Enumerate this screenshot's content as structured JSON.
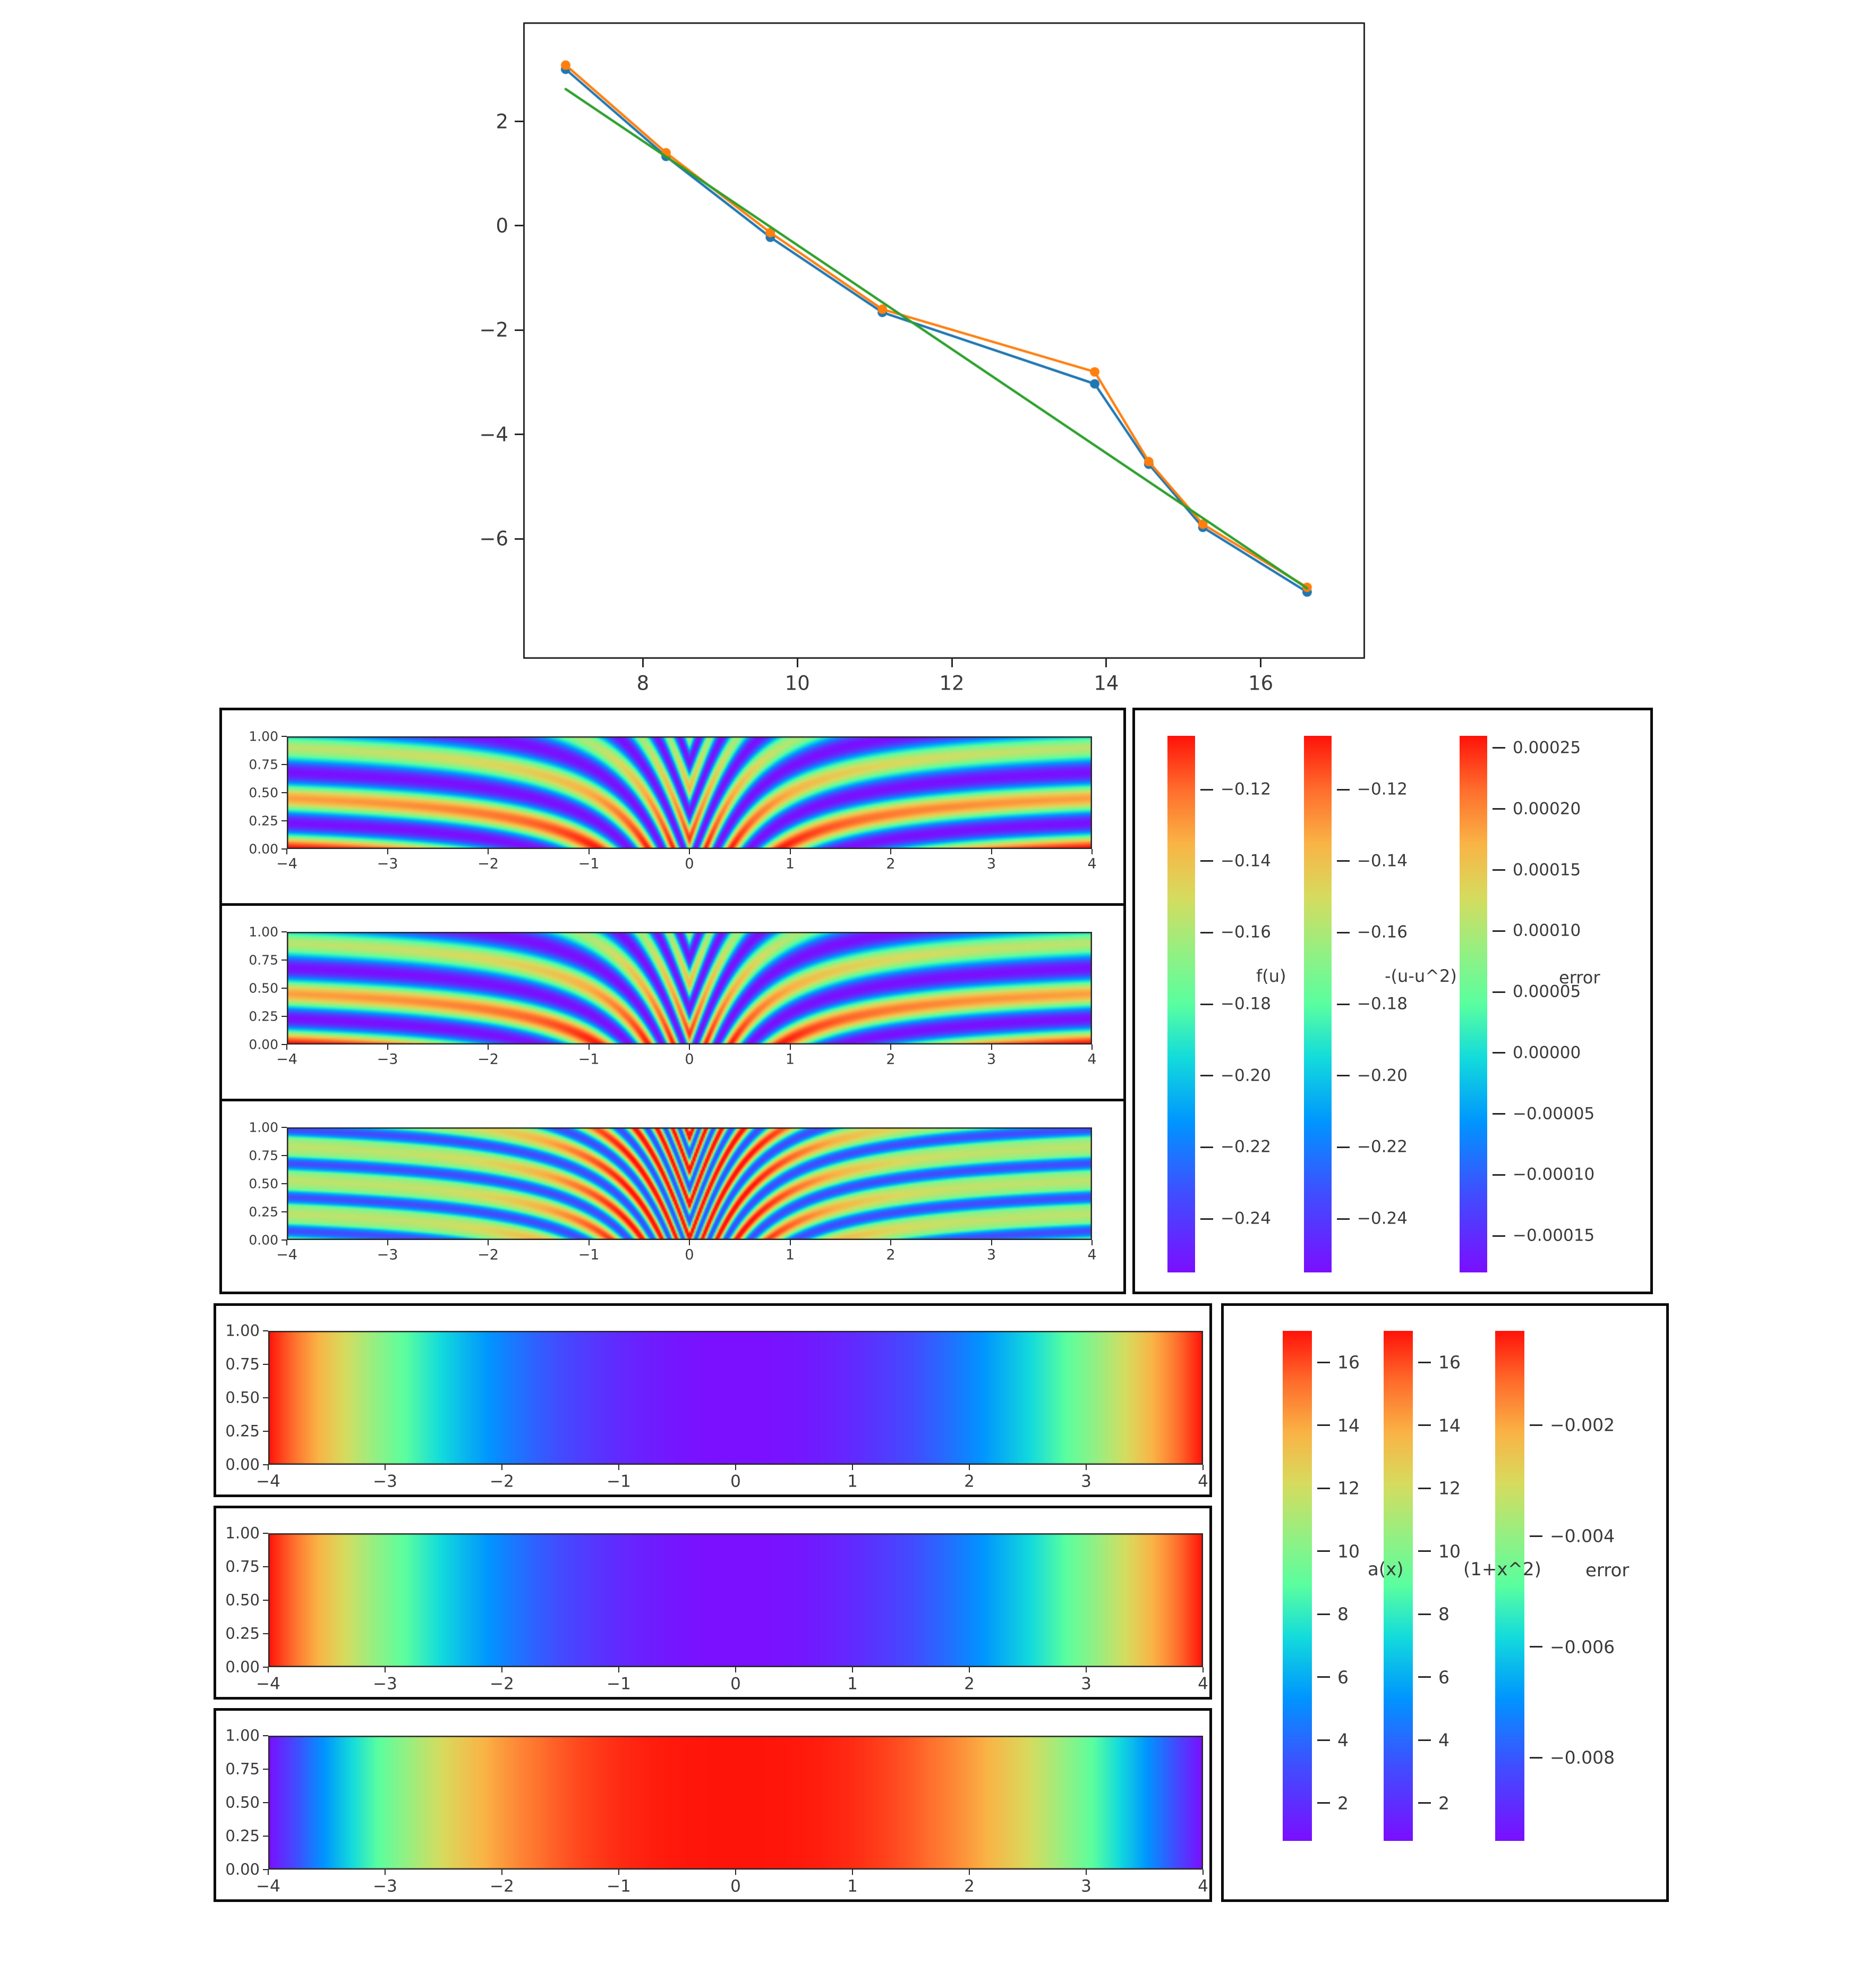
{
  "colors": {
    "background": "#ffffff",
    "axis_frame": "#262626",
    "tick_text": "#3a3a3a",
    "box_border": "#0a0a0a",
    "series_blue": "#1f77b4",
    "series_orange": "#ff7f0e",
    "series_green": "#2ca02c"
  },
  "strip_axes": {
    "xticks": [
      {
        "v": -4,
        "label": "−4"
      },
      {
        "v": -3,
        "label": "−3"
      },
      {
        "v": -2,
        "label": "−2"
      },
      {
        "v": -1,
        "label": "−1"
      },
      {
        "v": 0,
        "label": "0"
      },
      {
        "v": 1,
        "label": "1"
      },
      {
        "v": 2,
        "label": "2"
      },
      {
        "v": 3,
        "label": "3"
      },
      {
        "v": 4,
        "label": "4"
      }
    ],
    "yticks": [
      {
        "v": 1.0,
        "label": "1.00"
      },
      {
        "v": 0.75,
        "label": "0.75"
      },
      {
        "v": 0.5,
        "label": "0.50"
      },
      {
        "v": 0.25,
        "label": "0.25"
      },
      {
        "v": 0.0,
        "label": "0.00"
      }
    ]
  },
  "chart_data": [
    {
      "id": "line-chart",
      "type": "line",
      "title": "",
      "xlabel": "",
      "ylabel": "",
      "xlim": [
        6.45,
        17.35
      ],
      "ylim": [
        -8.3,
        3.9
      ],
      "grid": false,
      "legend": "none",
      "xticks": [
        {
          "v": 8,
          "label": "8"
        },
        {
          "v": 10,
          "label": "10"
        },
        {
          "v": 12,
          "label": "12"
        },
        {
          "v": 14,
          "label": "14"
        },
        {
          "v": 16,
          "label": "16"
        }
      ],
      "yticks": [
        {
          "v": 2,
          "label": "2"
        },
        {
          "v": 0,
          "label": "0"
        },
        {
          "v": -2,
          "label": "−2"
        },
        {
          "v": -4,
          "label": "−4"
        },
        {
          "v": -6,
          "label": "−6"
        }
      ],
      "series": [
        {
          "name": "computed-curve-blue",
          "color": "#1f77b4",
          "marker": true,
          "x": [
            7.0,
            8.3,
            9.65,
            11.1,
            13.85,
            14.55,
            15.25,
            16.6
          ],
          "y": [
            3.0,
            1.33,
            -0.22,
            -1.66,
            -3.03,
            -4.57,
            -5.78,
            -7.02
          ]
        },
        {
          "name": "reference-curve-orange",
          "color": "#ff7f0e",
          "marker": true,
          "x": [
            7.0,
            8.3,
            9.65,
            11.1,
            13.85,
            14.55,
            15.25,
            16.6
          ],
          "y": [
            3.08,
            1.4,
            -0.13,
            -1.6,
            -2.8,
            -4.52,
            -5.72,
            -6.93
          ]
        },
        {
          "name": "linear-fit-green",
          "color": "#2ca02c",
          "marker": false,
          "x": [
            7.0,
            16.6
          ],
          "y": [
            2.62,
            -6.95
          ]
        }
      ]
    },
    {
      "id": "wave-heatmap-1",
      "type": "heatmap",
      "subtype": "waves",
      "xlim": [
        -4,
        4
      ],
      "ylim": [
        0,
        1
      ],
      "colormap": "rainbow",
      "params": {
        "f": 2.2,
        "s": 1.2,
        "k": 2,
        "mode": "solution"
      }
    },
    {
      "id": "wave-heatmap-2",
      "type": "heatmap",
      "subtype": "waves",
      "xlim": [
        -4,
        4
      ],
      "ylim": [
        0,
        1
      ],
      "colormap": "rainbow",
      "params": {
        "f": 2.2,
        "s": 1.2,
        "k": 2,
        "mode": "solution"
      }
    },
    {
      "id": "wave-heatmap-3",
      "type": "heatmap",
      "subtype": "waves",
      "xlim": [
        -4,
        4
      ],
      "ylim": [
        0,
        1
      ],
      "colormap": "rainbow",
      "params": {
        "f": 3.3,
        "s": 1.2,
        "k": 2,
        "mode": "error"
      }
    },
    {
      "id": "gradient-heatmap-1",
      "type": "heatmap",
      "subtype": "gradient",
      "xlim": [
        -4,
        4
      ],
      "ylim": [
        0,
        1
      ],
      "colormap": "rainbow",
      "params": {
        "mode": "bowl",
        "vmin": 1,
        "vmax": 17
      }
    },
    {
      "id": "gradient-heatmap-2",
      "type": "heatmap",
      "subtype": "gradient",
      "xlim": [
        -4,
        4
      ],
      "ylim": [
        0,
        1
      ],
      "colormap": "rainbow",
      "params": {
        "mode": "bowl",
        "vmin": 1,
        "vmax": 17
      }
    },
    {
      "id": "gradient-heatmap-3",
      "type": "heatmap",
      "subtype": "gradient",
      "xlim": [
        -4,
        4
      ],
      "ylim": [
        0,
        1
      ],
      "colormap": "rainbow",
      "params": {
        "mode": "dome",
        "exponent": 2.6
      }
    }
  ],
  "colorbars": [
    {
      "id": "colorbar-f-u",
      "label": "f(u)",
      "range": [
        -0.105,
        -0.255
      ],
      "ticks": [
        {
          "v": -0.12,
          "label": "−0.12"
        },
        {
          "v": -0.14,
          "label": "−0.14"
        },
        {
          "v": -0.16,
          "label": "−0.16"
        },
        {
          "v": -0.18,
          "label": "−0.18"
        },
        {
          "v": -0.2,
          "label": "−0.20"
        },
        {
          "v": -0.22,
          "label": "−0.22"
        },
        {
          "v": -0.24,
          "label": "−0.24"
        }
      ]
    },
    {
      "id": "colorbar-exact",
      "label": "-(u-u^2)",
      "range": [
        -0.105,
        -0.255
      ],
      "ticks": [
        {
          "v": -0.12,
          "label": "−0.12"
        },
        {
          "v": -0.14,
          "label": "−0.14"
        },
        {
          "v": -0.16,
          "label": "−0.16"
        },
        {
          "v": -0.18,
          "label": "−0.18"
        },
        {
          "v": -0.2,
          "label": "−0.20"
        },
        {
          "v": -0.22,
          "label": "−0.22"
        },
        {
          "v": -0.24,
          "label": "−0.24"
        }
      ]
    },
    {
      "id": "colorbar-error-mid",
      "label": "error",
      "range": [
        0.00026,
        -0.00018
      ],
      "ticks": [
        {
          "v": 0.00025,
          "label": "0.00025"
        },
        {
          "v": 0.0002,
          "label": "0.00020"
        },
        {
          "v": 0.00015,
          "label": "0.00015"
        },
        {
          "v": 0.0001,
          "label": "0.00010"
        },
        {
          "v": 5e-05,
          "label": "0.00005"
        },
        {
          "v": 0.0,
          "label": "0.00000"
        },
        {
          "v": -5e-05,
          "label": "−0.00005"
        },
        {
          "v": -0.0001,
          "label": "−0.00010"
        },
        {
          "v": -0.00015,
          "label": "−0.00015"
        }
      ]
    },
    {
      "id": "colorbar-a-x",
      "label": "a(x)",
      "range": [
        17.0,
        0.8
      ],
      "ticks": [
        {
          "v": 16,
          "label": "16"
        },
        {
          "v": 14,
          "label": "14"
        },
        {
          "v": 12,
          "label": "12"
        },
        {
          "v": 10,
          "label": "10"
        },
        {
          "v": 8,
          "label": "8"
        },
        {
          "v": 6,
          "label": "6"
        },
        {
          "v": 4,
          "label": "4"
        },
        {
          "v": 2,
          "label": "2"
        }
      ]
    },
    {
      "id": "colorbar-1-x2",
      "label": "(1+x^2)",
      "range": [
        17.0,
        0.8
      ],
      "ticks": [
        {
          "v": 16,
          "label": "16"
        },
        {
          "v": 14,
          "label": "14"
        },
        {
          "v": 12,
          "label": "12"
        },
        {
          "v": 10,
          "label": "10"
        },
        {
          "v": 8,
          "label": "8"
        },
        {
          "v": 6,
          "label": "6"
        },
        {
          "v": 4,
          "label": "4"
        },
        {
          "v": 2,
          "label": "2"
        }
      ]
    },
    {
      "id": "colorbar-error-bottom",
      "label": "error",
      "range": [
        -0.0003,
        -0.0095
      ],
      "ticks": [
        {
          "v": -0.002,
          "label": "−0.002"
        },
        {
          "v": -0.004,
          "label": "−0.004"
        },
        {
          "v": -0.006,
          "label": "−0.006"
        },
        {
          "v": -0.008,
          "label": "−0.008"
        }
      ]
    }
  ]
}
